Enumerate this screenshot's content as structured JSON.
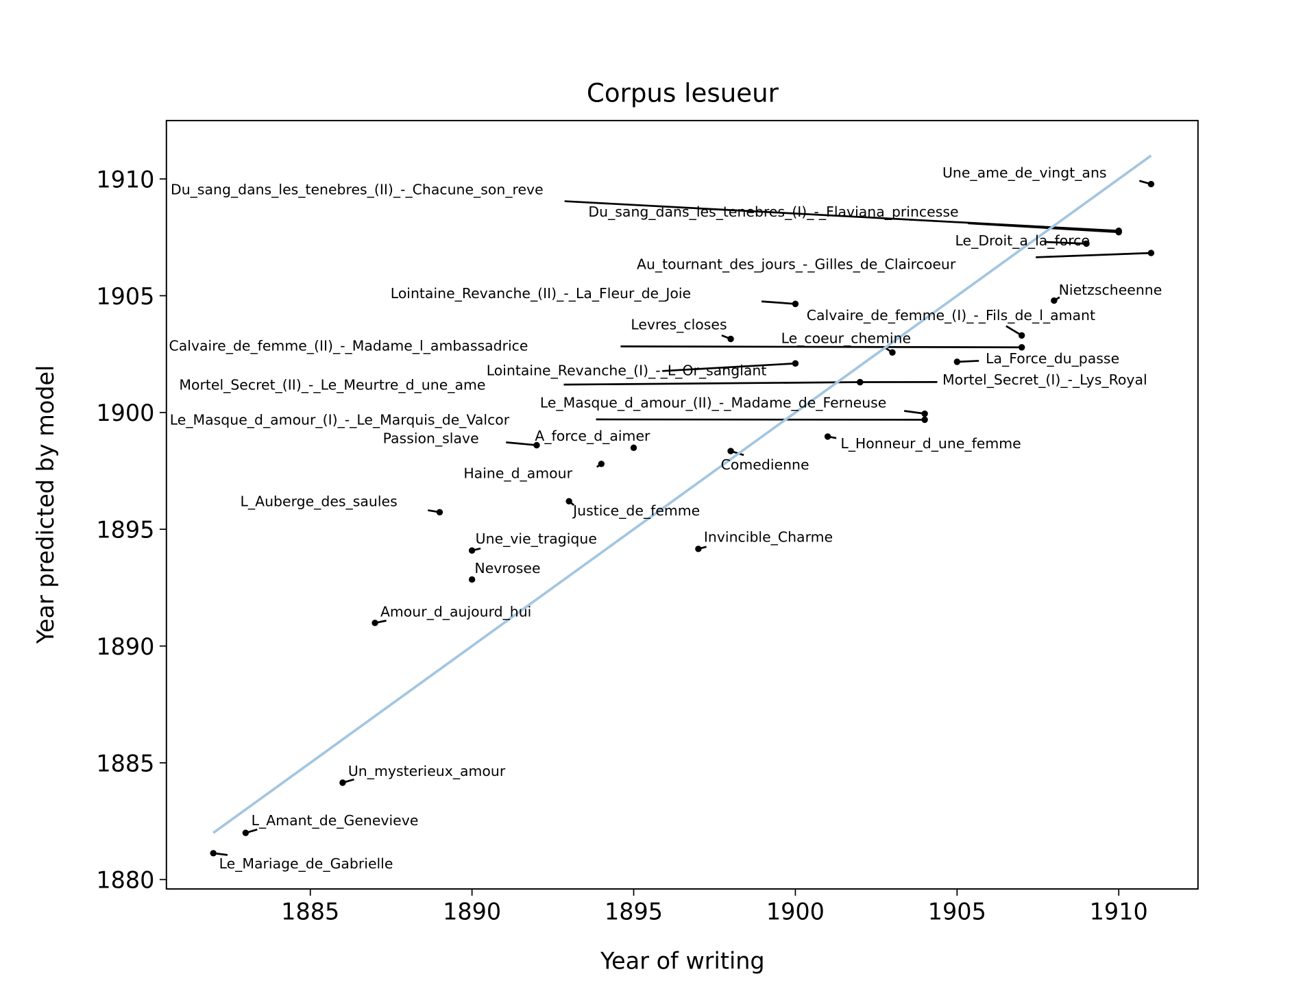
{
  "chart_data": {
    "type": "scatter",
    "title": "Corpus lesueur",
    "xlabel": "Year of writing",
    "ylabel": "Year predicted by model",
    "xlim": [
      1880.55,
      1912.45
    ],
    "ylim": [
      1879.6,
      1912.5
    ],
    "xticks": [
      "1885",
      "1890",
      "1895",
      "1900",
      "1905",
      "1910"
    ],
    "yticks": [
      "1880",
      "1885",
      "1890",
      "1895",
      "1900",
      "1905",
      "1910"
    ],
    "grid": false,
    "reference_line": {
      "type": "y=x",
      "from": 1882,
      "to": 1911,
      "color": "#a3c6e0"
    },
    "point_color": "#000000",
    "points": [
      {
        "label": "Une_ame_de_vingt_ans",
        "x": 1911,
        "y": 1909.78
      },
      {
        "label": "Du_sang_dans_les_tenebres_(II)_-_Chacune_son_reve",
        "x": 1910,
        "y": 1907.78
      },
      {
        "label": "Du_sang_dans_les_tenebres_(I)_-_Flaviana_princesse",
        "x": 1910,
        "y": 1907.72
      },
      {
        "label": "Le_Droit_a_la_force",
        "x": 1909,
        "y": 1907.23
      },
      {
        "label": "Au_tournant_des_jours_-_Gilles_de_Claircoeur",
        "x": 1911,
        "y": 1906.83
      },
      {
        "label": "Nietzscheenne",
        "x": 1908,
        "y": 1904.79
      },
      {
        "label": "Lointaine_Revanche_(II)_-_La_Fleur_de_Joie",
        "x": 1900,
        "y": 1904.65
      },
      {
        "label": "Calvaire_de_femme_(I)_-_Fils_de_l_amant",
        "x": 1907,
        "y": 1903.3
      },
      {
        "label": "Levres_closes",
        "x": 1898,
        "y": 1903.15
      },
      {
        "label": "Calvaire_de_femme_(II)_-_Madame_l_ambassadrice",
        "x": 1907,
        "y": 1902.79
      },
      {
        "label": "Le_coeur_chemine",
        "x": 1903,
        "y": 1902.57
      },
      {
        "label": "La_Force_du_passe",
        "x": 1905,
        "y": 1902.17
      },
      {
        "label": "Lointaine_Revanche_(I)_-_L_Or_sanglant",
        "x": 1900,
        "y": 1902.1
      },
      {
        "label": "Mortel_Secret_(II)_-_Le_Meurtre_d_une_ame",
        "x": 1902,
        "y": 1901.3
      },
      {
        "label": "Mortel_Secret_(I)_-_Lys_Royal",
        "x": 1902,
        "y": 1901.3
      },
      {
        "label": "Le_Masque_d_amour_(II)_-_Madame_de_Ferneuse",
        "x": 1904,
        "y": 1899.95
      },
      {
        "label": "Le_Masque_d_amour_(I)_-_Le_Marquis_de_Valcor",
        "x": 1904,
        "y": 1899.69
      },
      {
        "label": "L_Honneur_d_une_femme",
        "x": 1901,
        "y": 1898.97
      },
      {
        "label": "Passion_slave",
        "x": 1892,
        "y": 1898.6
      },
      {
        "label": "A_force_d_aimer",
        "x": 1895,
        "y": 1898.49
      },
      {
        "label": "Comedienne",
        "x": 1898,
        "y": 1898.35
      },
      {
        "label": "Haine_d_amour",
        "x": 1894,
        "y": 1897.8
      },
      {
        "label": "Justice_de_femme",
        "x": 1893,
        "y": 1896.2
      },
      {
        "label": "L_Auberge_des_saules",
        "x": 1889,
        "y": 1895.73
      },
      {
        "label": "Invincible_Charme",
        "x": 1897,
        "y": 1894.16
      },
      {
        "label": "Une_vie_tragique",
        "x": 1890,
        "y": 1894.09
      },
      {
        "label": "Nevrosee",
        "x": 1890,
        "y": 1892.85
      },
      {
        "label": "Amour_d_aujourd_hui",
        "x": 1887,
        "y": 1890.99
      },
      {
        "label": "Un_mysterieux_amour",
        "x": 1886,
        "y": 1884.15
      },
      {
        "label": "L_Amant_de_Genevieve",
        "x": 1883,
        "y": 1882.0
      },
      {
        "label": "Le_Mariage_de_Gabrielle",
        "x": 1882,
        "y": 1881.13
      }
    ]
  }
}
